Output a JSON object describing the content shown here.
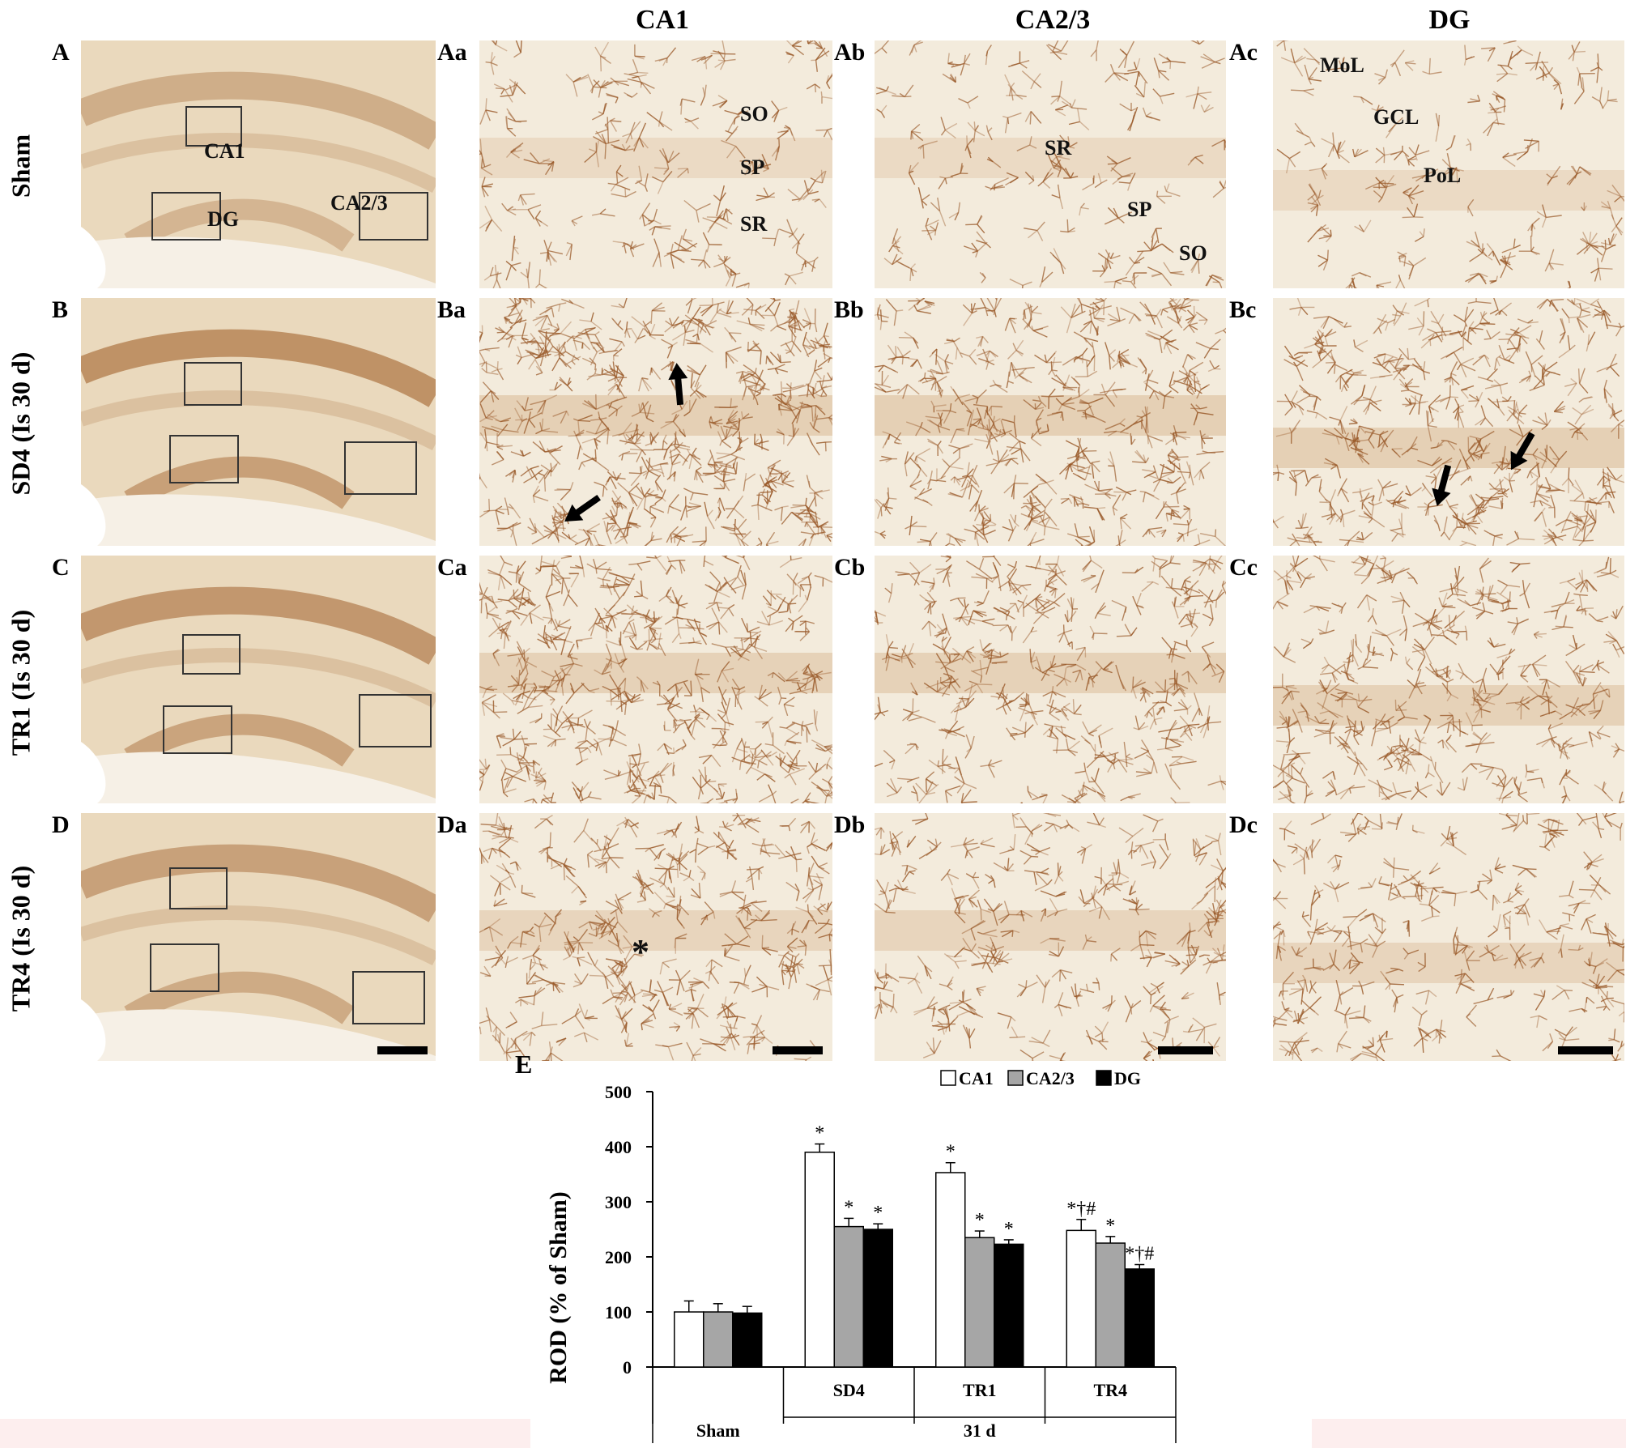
{
  "column_headers": [
    "CA1",
    "CA2/3",
    "DG"
  ],
  "row_labels": [
    "Sham",
    "SD4 (Is 30 d)",
    "TR1 (Is 30 d)",
    "TR4 (Is 30 d)"
  ],
  "panel_letters": {
    "A": [
      "A",
      "Aa",
      "Ab",
      "Ac"
    ],
    "B": [
      "B",
      "Ba",
      "Bb",
      "Bc"
    ],
    "C": [
      "C",
      "Ca",
      "Cb",
      "Cc"
    ],
    "D": [
      "D",
      "Da",
      "Db",
      "Dc"
    ]
  },
  "overview_labels": {
    "ca1": "CA1",
    "dg": "DG",
    "ca23": "CA2/3"
  },
  "layer_labels": {
    "aa_so": "SO",
    "aa_sp": "SP",
    "aa_sr": "SR",
    "ab_sr": "SR",
    "ab_sp": "SP",
    "ab_so": "SO",
    "ac_mol": "MoL",
    "ac_gcl": "GCL",
    "ac_pol": "PoL"
  },
  "asterisk_marker": "*",
  "colors": {
    "tissue_light": "#f1e8d6",
    "tissue_dark": "#c98f5a",
    "stain": "#9a5a2a"
  },
  "chart_data": {
    "type": "bar",
    "panel_label": "E",
    "ylabel": "ROD (% of Sham)",
    "ylim": [
      0,
      500
    ],
    "yticks": [
      "0",
      "100",
      "200",
      "300",
      "400",
      "500"
    ],
    "group_labels": [
      "Sham",
      "SD4",
      "TR1",
      "TR4"
    ],
    "group_header": "31 d",
    "legend_position": "top",
    "series": [
      {
        "name": "CA1",
        "color": "#ffffff",
        "values": [
          100,
          390,
          353,
          248
        ],
        "errors": [
          20,
          15,
          18,
          20
        ],
        "marks": [
          "",
          "*",
          "*",
          "*†#"
        ]
      },
      {
        "name": "CA2/3",
        "color": "#a6a6a6",
        "values": [
          100,
          255,
          235,
          225
        ],
        "errors": [
          15,
          15,
          12,
          12
        ],
        "marks": [
          "",
          "*",
          "*",
          "*"
        ]
      },
      {
        "name": "DG",
        "color": "#000000",
        "values": [
          98,
          250,
          223,
          178
        ],
        "errors": [
          12,
          10,
          8,
          8
        ],
        "marks": [
          "",
          "*",
          "*",
          "*†#"
        ]
      }
    ]
  }
}
